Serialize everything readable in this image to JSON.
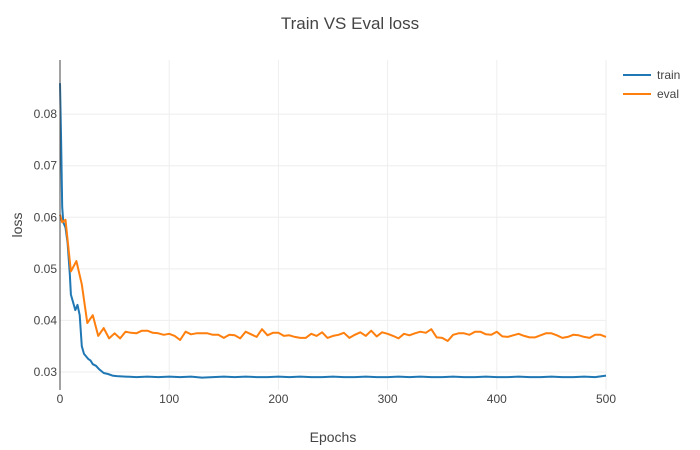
{
  "chart_data": {
    "type": "line",
    "title": "Train VS Eval loss",
    "xlabel": "Epochs",
    "ylabel": "loss",
    "xlim": [
      0,
      500
    ],
    "ylim": [
      0.0265,
      0.0905
    ],
    "xticks": [
      0,
      100,
      200,
      300,
      400,
      500
    ],
    "xtick_labels": [
      "0",
      "100",
      "200",
      "300",
      "400",
      "500"
    ],
    "yticks": [
      0.03,
      0.04,
      0.05,
      0.06,
      0.07,
      0.08
    ],
    "ytick_labels": [
      "0.03",
      "0.04",
      "0.05",
      "0.06",
      "0.07",
      "0.08"
    ],
    "grid": true,
    "legend_position": "top-right",
    "series": [
      {
        "name": "train",
        "color": "#1f77b4",
        "x": [
          0,
          1,
          2,
          3,
          5,
          7,
          9,
          10,
          12,
          14,
          16,
          18,
          20,
          22,
          24,
          26,
          28,
          30,
          33,
          36,
          40,
          44,
          48,
          52,
          60,
          70,
          80,
          90,
          100,
          110,
          120,
          130,
          140,
          150,
          160,
          170,
          180,
          190,
          200,
          210,
          220,
          230,
          240,
          250,
          260,
          270,
          280,
          290,
          300,
          310,
          320,
          330,
          340,
          350,
          360,
          370,
          380,
          390,
          400,
          410,
          420,
          430,
          440,
          450,
          460,
          470,
          480,
          490,
          500
        ],
        "values": [
          0.086,
          0.075,
          0.062,
          0.059,
          0.058,
          0.055,
          0.049,
          0.045,
          0.0435,
          0.042,
          0.043,
          0.041,
          0.035,
          0.0335,
          0.033,
          0.0325,
          0.0322,
          0.0315,
          0.0312,
          0.0305,
          0.0298,
          0.0296,
          0.0293,
          0.0292,
          0.0291,
          0.029,
          0.0291,
          0.029,
          0.0291,
          0.029,
          0.0291,
          0.0289,
          0.029,
          0.0291,
          0.029,
          0.0291,
          0.029,
          0.029,
          0.0291,
          0.029,
          0.0291,
          0.029,
          0.029,
          0.0291,
          0.029,
          0.029,
          0.0291,
          0.029,
          0.029,
          0.0291,
          0.029,
          0.0291,
          0.029,
          0.029,
          0.0291,
          0.029,
          0.029,
          0.0291,
          0.029,
          0.029,
          0.0291,
          0.029,
          0.029,
          0.0291,
          0.029,
          0.029,
          0.0291,
          0.029,
          0.0293
        ]
      },
      {
        "name": "eval",
        "color": "#ff7f0e",
        "x": [
          0,
          2,
          5,
          10,
          15,
          20,
          25,
          30,
          35,
          40,
          45,
          50,
          55,
          60,
          65,
          70,
          75,
          80,
          85,
          90,
          95,
          100,
          105,
          110,
          115,
          120,
          125,
          130,
          135,
          140,
          145,
          150,
          155,
          160,
          165,
          170,
          175,
          180,
          185,
          190,
          195,
          200,
          205,
          210,
          215,
          220,
          225,
          230,
          235,
          240,
          245,
          250,
          255,
          260,
          265,
          270,
          275,
          280,
          285,
          290,
          295,
          300,
          305,
          310,
          315,
          320,
          325,
          330,
          335,
          340,
          345,
          350,
          355,
          360,
          365,
          370,
          375,
          380,
          385,
          390,
          395,
          400,
          405,
          410,
          415,
          420,
          425,
          430,
          435,
          440,
          445,
          450,
          455,
          460,
          465,
          470,
          475,
          480,
          485,
          490,
          495,
          500
        ],
        "values": [
          0.0605,
          0.059,
          0.0595,
          0.0495,
          0.0515,
          0.047,
          0.0395,
          0.041,
          0.037,
          0.0385,
          0.0365,
          0.0375,
          0.0365,
          0.0378,
          0.0376,
          0.0375,
          0.038,
          0.038,
          0.0376,
          0.0375,
          0.0372,
          0.0374,
          0.037,
          0.0362,
          0.0378,
          0.0373,
          0.0375,
          0.0375,
          0.0375,
          0.0372,
          0.0372,
          0.0366,
          0.0372,
          0.0371,
          0.0365,
          0.0378,
          0.0373,
          0.0368,
          0.0383,
          0.0371,
          0.0376,
          0.0376,
          0.037,
          0.0371,
          0.0368,
          0.0366,
          0.0366,
          0.0374,
          0.037,
          0.0377,
          0.0366,
          0.037,
          0.0372,
          0.0376,
          0.0366,
          0.0372,
          0.0377,
          0.037,
          0.038,
          0.0369,
          0.0377,
          0.0374,
          0.037,
          0.0365,
          0.0374,
          0.0371,
          0.0375,
          0.0378,
          0.0376,
          0.0383,
          0.0367,
          0.0366,
          0.036,
          0.0372,
          0.0375,
          0.0375,
          0.0372,
          0.0378,
          0.0378,
          0.0373,
          0.0372,
          0.0378,
          0.0369,
          0.0368,
          0.0371,
          0.0374,
          0.037,
          0.0367,
          0.0367,
          0.0371,
          0.0375,
          0.0375,
          0.0371,
          0.0366,
          0.0368,
          0.0372,
          0.0371,
          0.0368,
          0.0366,
          0.0372,
          0.0372,
          0.0368
        ]
      }
    ]
  }
}
